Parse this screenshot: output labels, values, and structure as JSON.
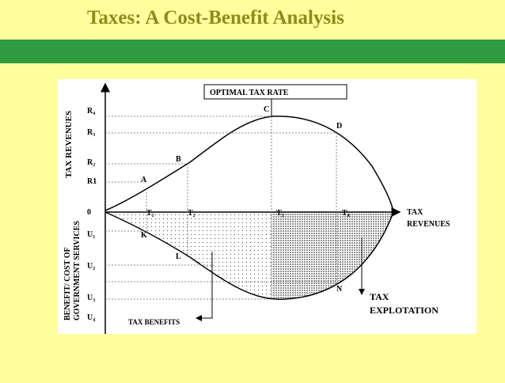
{
  "header": {
    "title": "Taxes: A Cost-Benefit Analysis"
  },
  "diagram": {
    "upper_axis_label": "TAX REVENUES",
    "lower_axis_label": [
      "BENEFIT/ COST OF",
      "GOVERNMENT SERVICES"
    ],
    "y_labels": [
      "R₄",
      "R₃",
      "R₂",
      "R1",
      "0",
      "U₁",
      "U₂",
      "U₃",
      "U₄"
    ],
    "x_labels": [
      "T₁",
      "T₂",
      "T₃",
      "T₄"
    ],
    "points": [
      "A",
      "B",
      "C",
      "D",
      "K",
      "L",
      "N"
    ],
    "optimal_label": "OPTIMAL TAX RATE",
    "x_axis_label": [
      "TAX",
      "REVENUES"
    ],
    "benefits_label": "TAX BENEFITS",
    "exploitation_label": [
      "TAX",
      "EXPLOTATION"
    ]
  }
}
